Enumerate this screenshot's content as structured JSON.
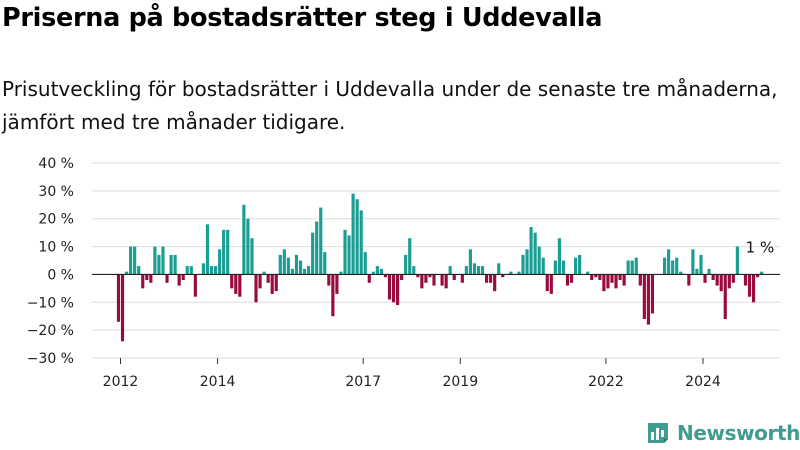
{
  "title": "Priserna på bostadsrätter steg i Uddevalla",
  "subtitle": "Prisutveckling för bostadsrätter i Uddevalla under de senaste tre månaderna, jämfört med tre månader tidigare.",
  "logo": {
    "text": "Newsworthy",
    "icon": "newsworthy-logo-icon"
  },
  "colors": {
    "positive": "#1a9e93",
    "negative": "#990a3f",
    "grid": "#dddddd",
    "zero_line": "#222222",
    "logo": "#3f9c8e"
  },
  "chart_data": {
    "type": "bar",
    "title": "Priserna på bostadsrätter steg i Uddevalla",
    "xlabel": "",
    "ylabel": "",
    "ylim": [
      -30,
      40
    ],
    "y_ticks": [
      40,
      30,
      20,
      10,
      0,
      -10,
      -20,
      -30
    ],
    "y_tick_labels": [
      "40 %",
      "30 %",
      "20 %",
      "10 %",
      "0 %",
      "−10 %",
      "−20 %",
      "−30 %"
    ],
    "x_ticks": [
      2012,
      2014,
      2017,
      2019,
      2022,
      2024
    ],
    "x_tick_labels": [
      "2012",
      "2014",
      "2017",
      "2019",
      "2022",
      "2024"
    ],
    "grid": true,
    "unit": "%",
    "period_start": "2011-12",
    "period_end": "2025-01",
    "values": [
      -17,
      -24,
      1,
      10,
      10,
      3,
      -5,
      -2,
      -3,
      10,
      7,
      10,
      -3,
      7,
      7,
      -4,
      -2,
      3,
      3,
      -8,
      0,
      4,
      18,
      3,
      3,
      9,
      16,
      16,
      -5,
      -7,
      -8,
      25,
      20,
      13,
      -10,
      -5,
      1,
      -3,
      -7,
      -6,
      7,
      9,
      6,
      2,
      7,
      5,
      2,
      3,
      15,
      19,
      24,
      8,
      -4,
      -15,
      -7,
      1,
      16,
      14,
      29,
      27,
      23,
      8,
      -3,
      1,
      3,
      2,
      -1,
      -9,
      -10,
      -11,
      -2,
      7,
      13,
      3,
      -1,
      -5,
      -3,
      -1,
      -4,
      0,
      -4,
      -5,
      3,
      -2,
      0,
      -3,
      3,
      9,
      4,
      3,
      3,
      -3,
      -3,
      -6,
      4,
      -1,
      0,
      1,
      0,
      1,
      7,
      9,
      17,
      15,
      10,
      6,
      -6,
      -7,
      5,
      13,
      5,
      -4,
      -3,
      6,
      7,
      0,
      1,
      -2,
      -1,
      -2,
      -6,
      -5,
      -3,
      -5,
      -2,
      -4,
      5,
      5,
      6,
      -4,
      -16,
      -18,
      -14,
      0,
      0,
      6,
      9,
      5,
      6,
      1,
      0,
      -4,
      9,
      2,
      7,
      -3,
      2,
      -2,
      -4,
      -6,
      -16,
      -5,
      -3,
      10,
      0,
      -4,
      -8,
      -10,
      -1,
      1
    ],
    "annotations": [
      {
        "text": "1 %",
        "target": "last"
      }
    ]
  }
}
